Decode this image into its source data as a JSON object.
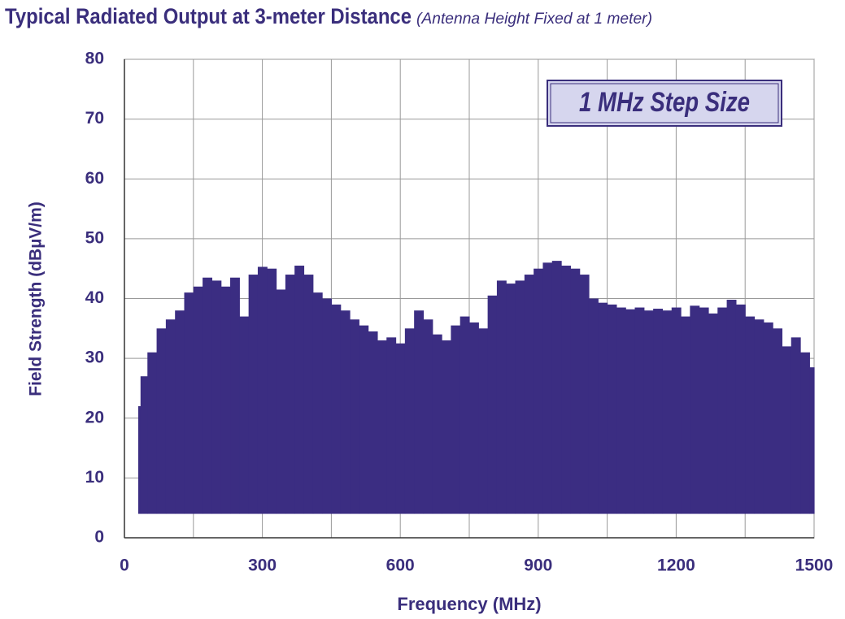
{
  "chart_data": {
    "type": "range-bar",
    "title": "Typical Radiated Output at 3-meter Distance",
    "subtitle": "(Antenna Height Fixed at 1 meter)",
    "annotation": "1 MHz Step Size",
    "x_label": "Frequency (MHz)",
    "y_label": "Field Strength (dBµV/m)",
    "xlim": [
      0,
      1500
    ],
    "xticks": [
      0,
      300,
      600,
      900,
      1200,
      1500
    ],
    "xgrid": [
      150,
      450,
      750,
      1050,
      1350
    ],
    "ylim": [
      0,
      80
    ],
    "yticks": [
      0,
      10,
      20,
      30,
      40,
      50,
      60,
      70,
      80
    ],
    "grid": true,
    "x": [
      30,
      40,
      60,
      80,
      100,
      120,
      140,
      160,
      180,
      200,
      220,
      240,
      260,
      280,
      300,
      320,
      340,
      360,
      380,
      400,
      420,
      440,
      460,
      480,
      500,
      520,
      540,
      560,
      580,
      600,
      620,
      640,
      660,
      680,
      700,
      720,
      740,
      760,
      780,
      800,
      820,
      840,
      860,
      880,
      900,
      920,
      940,
      960,
      980,
      1000,
      1020,
      1040,
      1060,
      1080,
      1100,
      1120,
      1140,
      1160,
      1180,
      1200,
      1220,
      1240,
      1260,
      1280,
      1300,
      1320,
      1340,
      1360,
      1380,
      1400,
      1420,
      1440,
      1460,
      1480,
      1500
    ],
    "series": [
      {
        "color": "#3b2d82",
        "values": [
          22,
          27,
          31,
          35,
          36.5,
          38,
          41,
          42,
          43.5,
          43,
          42,
          43.5,
          37,
          44,
          45.3,
          45,
          41.5,
          44,
          45.5,
          44,
          41,
          40,
          39,
          38,
          36.5,
          35.5,
          34.5,
          33,
          33.5,
          32.5,
          35,
          38,
          36.5,
          34,
          33,
          35.5,
          37,
          36,
          35,
          40.5,
          43,
          42.5,
          43,
          44,
          45,
          46,
          46.3,
          45.5,
          45,
          44,
          40,
          39.3,
          39,
          38.5,
          38.2,
          38.5,
          38,
          38.3,
          38,
          38.5,
          37,
          38.8,
          38.5,
          37.5,
          38.5,
          39.8,
          39,
          37,
          36.5,
          36,
          35,
          32,
          33.5,
          31,
          28.5
        ],
        "low": [
          4,
          4,
          4,
          4,
          4,
          4,
          4,
          4,
          4,
          4,
          4,
          4,
          4,
          4,
          4,
          4,
          4,
          4,
          4,
          4,
          4,
          4,
          4,
          4,
          4,
          4,
          4,
          4,
          4,
          4,
          4,
          4,
          4,
          4,
          4,
          4,
          4,
          4,
          4,
          4,
          4,
          4,
          4,
          4,
          4,
          4,
          4,
          4,
          4,
          4,
          4,
          4,
          4,
          4,
          4,
          4,
          4,
          4,
          4,
          4,
          4,
          4,
          4,
          4,
          4,
          4,
          4,
          4,
          4,
          4,
          4,
          4,
          4,
          4,
          4
        ]
      }
    ]
  }
}
